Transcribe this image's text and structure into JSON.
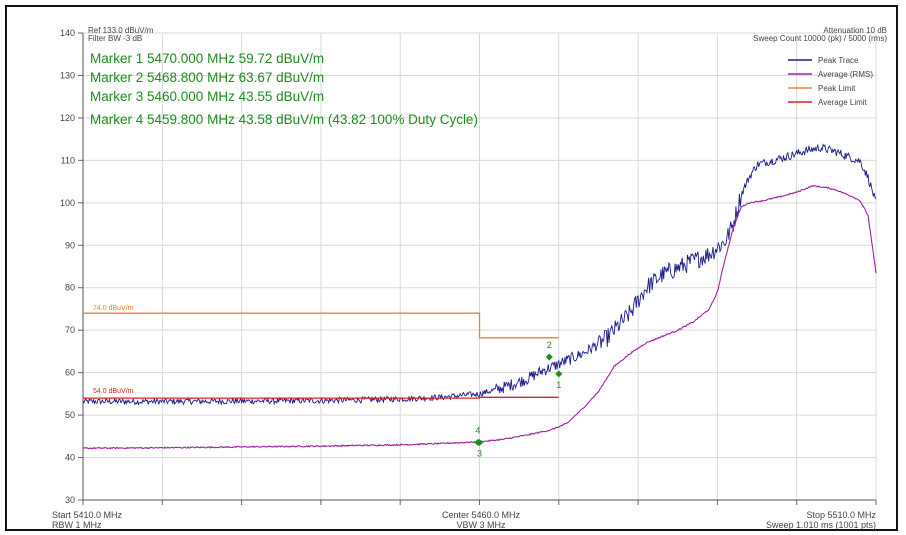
{
  "chart_data": {
    "type": "line",
    "header": {
      "ref": "Ref 133.0 dBuV/m",
      "filter_bw": "Filter BW -3 dB",
      "attenuation": "Attenuation 10 dB",
      "sweep_count": "Sweep Count 10000 (pk) / 5000 (rms)"
    },
    "markers_text": [
      "Marker 1 5470.000 MHz 59.72 dBuV/m",
      "Marker 2 5468.800 MHz 63.67 dBuV/m",
      "Marker 3 5460.000 MHz 43.55 dBuV/m",
      "Marker 4 5459.800 MHz 43.58 dBuV/m (43.82 100% Duty Cycle)"
    ],
    "markers": [
      {
        "label": "1",
        "x": 5470.0,
        "y": 59.72
      },
      {
        "label": "2",
        "x": 5468.8,
        "y": 63.67
      },
      {
        "label": "3",
        "x": 5460.0,
        "y": 43.55
      },
      {
        "label": "4",
        "x": 5459.8,
        "y": 43.58
      }
    ],
    "xlim": [
      5410.0,
      5510.0
    ],
    "ylim": [
      30,
      140
    ],
    "yticks": [
      30,
      40,
      50,
      60,
      70,
      80,
      90,
      100,
      110,
      120,
      130,
      140
    ],
    "bottom_labels": {
      "start": "Start 5410.0 MHz",
      "rbw": "RBW 1 MHz",
      "center": "Center 5460.0 MHz",
      "vbw": "VBW 3 MHz",
      "stop": "Stop 5510.0 MHz",
      "sweep": "Sweep 1.010 ms (1001 pts)"
    },
    "limit_labels": {
      "peak": "74.0 dBuV/m",
      "average": "54.0 dBuV/m"
    },
    "legend": [
      {
        "name": "Peak Trace",
        "color": "#1c1c8c"
      },
      {
        "name": "Average (RMS)",
        "color": "#a020a0"
      },
      {
        "name": "Peak Limit",
        "color": "#f08030"
      },
      {
        "name": "Average Limit",
        "color": "#e02020"
      }
    ],
    "legend_position": "top-right",
    "grid": true,
    "series": [
      {
        "name": "Peak Trace",
        "points": [
          [
            5410,
            53.2
          ],
          [
            5420,
            53.2
          ],
          [
            5430,
            53.3
          ],
          [
            5440,
            53.4
          ],
          [
            5450,
            53.8
          ],
          [
            5455,
            54.2
          ],
          [
            5460,
            55
          ],
          [
            5463,
            56.5
          ],
          [
            5466,
            58.5
          ],
          [
            5468,
            60.5
          ],
          [
            5470,
            62
          ],
          [
            5473,
            64.5
          ],
          [
            5476,
            68
          ],
          [
            5479,
            74
          ],
          [
            5481,
            80
          ],
          [
            5483,
            83
          ],
          [
            5486,
            85.5
          ],
          [
            5489,
            88
          ],
          [
            5491,
            91
          ],
          [
            5492,
            95
          ],
          [
            5493,
            102
          ],
          [
            5494,
            106
          ],
          [
            5495,
            109
          ],
          [
            5497,
            110
          ],
          [
            5499,
            111
          ],
          [
            5501,
            112.2
          ],
          [
            5503,
            113
          ],
          [
            5505,
            112
          ],
          [
            5507,
            110.5
          ],
          [
            5508,
            109.8
          ],
          [
            5509,
            106
          ],
          [
            5510,
            100
          ]
        ]
      },
      {
        "name": "Average (RMS)",
        "points": [
          [
            5410,
            42.2
          ],
          [
            5420,
            42.3
          ],
          [
            5430,
            42.5
          ],
          [
            5440,
            42.7
          ],
          [
            5450,
            43
          ],
          [
            5455,
            43.3
          ],
          [
            5460,
            43.7
          ],
          [
            5463,
            44.3
          ],
          [
            5466,
            45.3
          ],
          [
            5469,
            46.5
          ],
          [
            5471,
            48
          ],
          [
            5473,
            51.5
          ],
          [
            5475,
            55.5
          ],
          [
            5477,
            61.5
          ],
          [
            5479,
            64.5
          ],
          [
            5481,
            67
          ],
          [
            5483,
            68.5
          ],
          [
            5485,
            70
          ],
          [
            5487,
            72
          ],
          [
            5489,
            75
          ],
          [
            5490,
            79
          ],
          [
            5491,
            87
          ],
          [
            5492,
            94
          ],
          [
            5493,
            99
          ],
          [
            5494,
            100
          ],
          [
            5496,
            100.6
          ],
          [
            5498,
            101.5
          ],
          [
            5500,
            102.5
          ],
          [
            5502,
            104
          ],
          [
            5504,
            103.5
          ],
          [
            5505,
            103
          ],
          [
            5507,
            101.5
          ],
          [
            5508,
            100.5
          ],
          [
            5509,
            97
          ],
          [
            5510,
            83.5
          ]
        ]
      },
      {
        "name": "Peak Limit",
        "points": [
          [
            5410,
            74
          ],
          [
            5460,
            74
          ],
          [
            5460,
            68.2
          ],
          [
            5470,
            68.2
          ]
        ]
      },
      {
        "name": "Average Limit",
        "points": [
          [
            5410,
            54
          ],
          [
            5460,
            54
          ],
          [
            5460,
            54.2
          ],
          [
            5470,
            54.2
          ]
        ]
      }
    ]
  }
}
